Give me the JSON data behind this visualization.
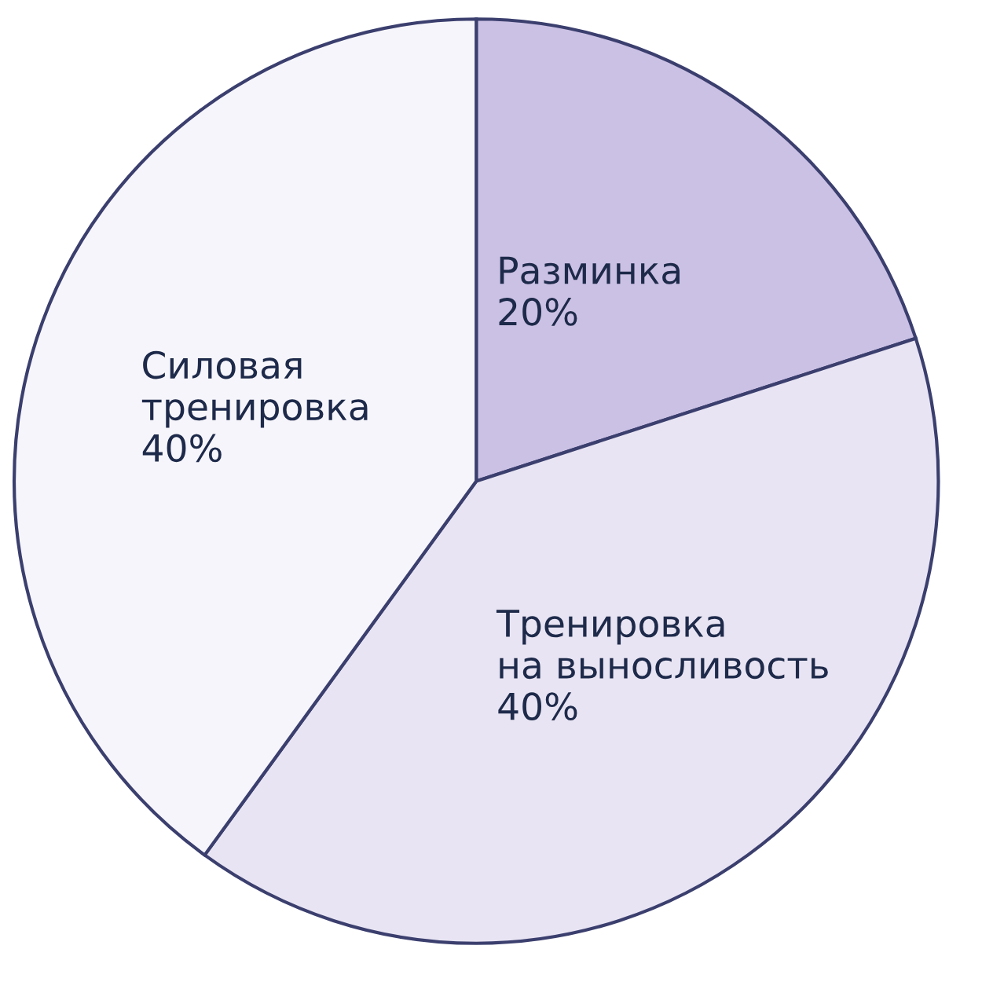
{
  "chart_data": {
    "type": "pie",
    "categories": [
      "Разминка",
      "Тренировка\nна выносливость",
      "Силовая\nтренировка"
    ],
    "values": [
      20,
      40,
      40
    ],
    "value_labels": [
      "20%",
      "40%",
      "40%"
    ],
    "colors": [
      "#cbc1e4",
      "#e8e4f3",
      "#f6f5fb"
    ],
    "legend": false
  }
}
